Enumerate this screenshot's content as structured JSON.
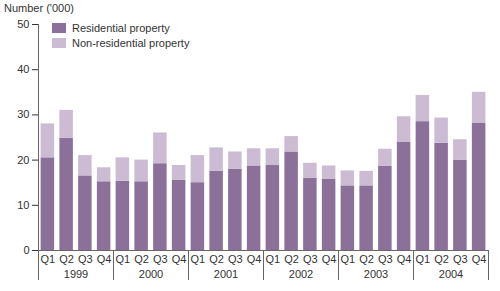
{
  "chart_data": {
    "type": "bar",
    "stacked": true,
    "y_label": "Number ('000)",
    "categories": [
      "Q1",
      "Q2",
      "Q3",
      "Q4",
      "Q1",
      "Q2",
      "Q3",
      "Q4",
      "Q1",
      "Q2",
      "Q3",
      "Q4",
      "Q1",
      "Q2",
      "Q3",
      "Q4",
      "Q1",
      "Q2",
      "Q3",
      "Q4",
      "Q1",
      "Q2",
      "Q3",
      "Q4"
    ],
    "years": [
      "1999",
      "2000",
      "2001",
      "2002",
      "2003",
      "2004"
    ],
    "series": [
      {
        "name": "Residential property",
        "color": "#8b7199",
        "values": [
          20.5,
          24.8,
          16.5,
          15.2,
          15.3,
          15.2,
          19.2,
          15.5,
          15,
          17.5,
          18,
          18.7,
          18.8,
          21.8,
          16,
          15.8,
          14.3,
          14.3,
          18.6,
          24,
          28.5,
          23.7,
          20,
          28.2
        ]
      },
      {
        "name": "Non-residential property",
        "color": "#cbbbd3",
        "values": [
          7.5,
          6.2,
          4.5,
          3.1,
          5.2,
          4.8,
          6.8,
          3.3,
          6,
          5.2,
          3.8,
          3.8,
          3.7,
          3.4,
          3.3,
          2.9,
          3.3,
          3.2,
          3.8,
          5.6,
          5.8,
          5.6,
          4.5,
          6.8
        ]
      }
    ],
    "ylim": [
      0,
      50
    ],
    "yticks": [
      0,
      10,
      20,
      30,
      40,
      50
    ],
    "grid": false,
    "legend": "top-left"
  }
}
